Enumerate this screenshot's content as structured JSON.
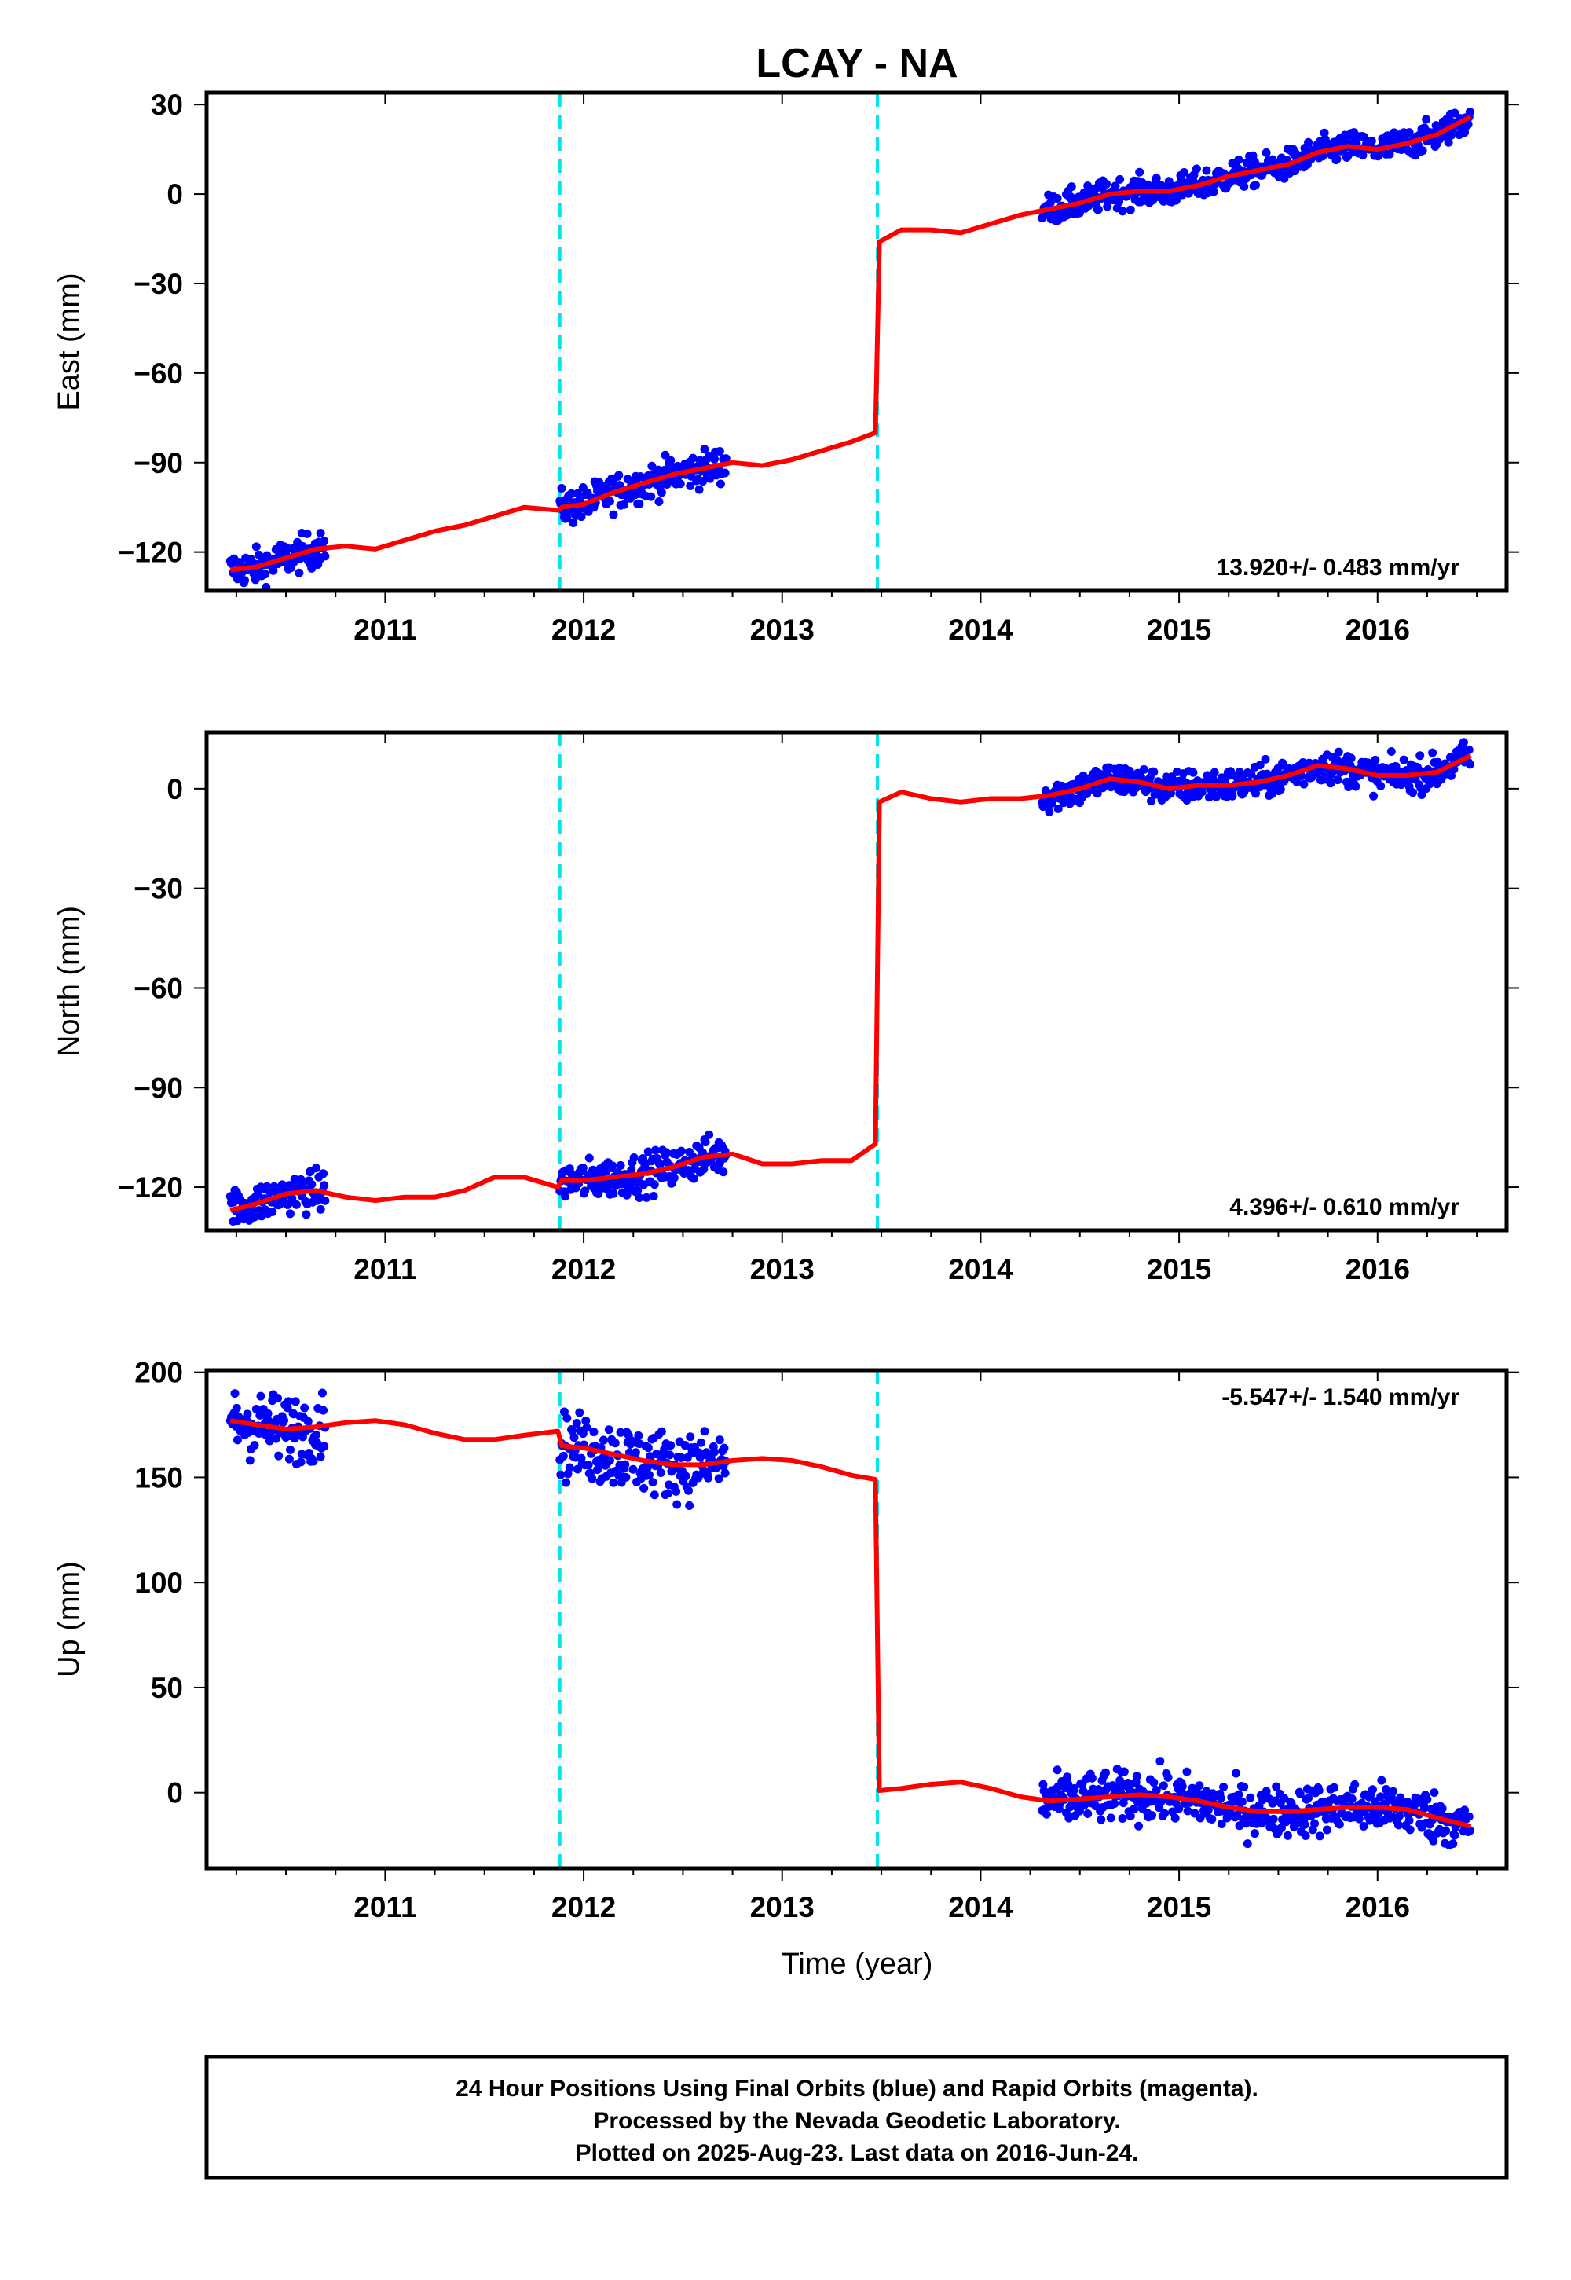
{
  "title": "LCAY - NA",
  "colors": {
    "data": "#0000ff",
    "fit": "#ff0000",
    "breaks": "#00e5ee",
    "frame": "#000000"
  },
  "chart_data": [
    {
      "type": "scatter",
      "ylabel": "East (mm)",
      "xlim": [
        2010.1,
        2016.65
      ],
      "ylim": [
        -133,
        34
      ],
      "yticks": [
        30,
        0,
        -30,
        -60,
        -90,
        -120
      ],
      "yticklabels": [
        "30",
        "0",
        "−30",
        "−60",
        "−90",
        "−120"
      ],
      "xticks": [
        2011,
        2012,
        2013,
        2014,
        2015,
        2016
      ],
      "xticklabels": [
        "2011",
        "2012",
        "2013",
        "2014",
        "2015",
        "2016"
      ],
      "rate": "13.920+/- 0.483 mm/yr",
      "rate_position": "bottom-right",
      "breaks": [
        2011.88,
        2013.48
      ],
      "fit": {
        "name": "model fit",
        "x": [
          2010.22,
          2010.35,
          2010.5,
          2010.65,
          2010.8,
          2010.95,
          2011.1,
          2011.25,
          2011.4,
          2011.55,
          2011.7,
          2011.87,
          2011.89,
          2012.0,
          2012.15,
          2012.3,
          2012.45,
          2012.6,
          2012.75,
          2012.9,
          2013.05,
          2013.2,
          2013.35,
          2013.47,
          2013.49,
          2013.6,
          2013.75,
          2013.9,
          2014.05,
          2014.2,
          2014.35,
          2014.5,
          2014.65,
          2014.8,
          2014.95,
          2015.1,
          2015.25,
          2015.4,
          2015.55,
          2015.7,
          2015.85,
          2016.0,
          2016.15,
          2016.3,
          2016.47
        ],
        "y": [
          -126,
          -125,
          -122,
          -119,
          -118,
          -119,
          -116,
          -113,
          -111,
          -108,
          -105,
          -106,
          -105,
          -104,
          -100,
          -97,
          -94,
          -92,
          -90,
          -91,
          -89,
          -86,
          -83,
          -80,
          -16,
          -12,
          -12,
          -13,
          -10,
          -7,
          -5,
          -3,
          0,
          1,
          1,
          3,
          6,
          8,
          10,
          14,
          16,
          15,
          17,
          20,
          26
        ]
      },
      "scatter": {
        "name": "24 hour positions",
        "segments": [
          {
            "x0": 2010.22,
            "x1": 2010.7,
            "noise": 3
          },
          {
            "x0": 2011.88,
            "x1": 2012.72,
            "noise": 3
          },
          {
            "x0": 2014.31,
            "x1": 2016.47,
            "noise": 2.5
          }
        ]
      }
    },
    {
      "type": "scatter",
      "ylabel": "North (mm)",
      "xlim": [
        2010.1,
        2016.65
      ],
      "ylim": [
        -133,
        17
      ],
      "yticks": [
        0,
        -30,
        -60,
        -90,
        -120
      ],
      "yticklabels": [
        "0",
        "−30",
        "−60",
        "−90",
        "−120"
      ],
      "xticks": [
        2011,
        2012,
        2013,
        2014,
        2015,
        2016
      ],
      "xticklabels": [
        "2011",
        "2012",
        "2013",
        "2014",
        "2015",
        "2016"
      ],
      "rate": "4.396+/- 0.610 mm/yr",
      "rate_position": "bottom-right",
      "breaks": [
        2011.88,
        2013.48
      ],
      "fit": {
        "name": "model fit",
        "x": [
          2010.22,
          2010.35,
          2010.5,
          2010.65,
          2010.8,
          2010.95,
          2011.1,
          2011.25,
          2011.4,
          2011.55,
          2011.7,
          2011.87,
          2011.89,
          2012.0,
          2012.15,
          2012.3,
          2012.45,
          2012.6,
          2012.75,
          2012.9,
          2013.05,
          2013.2,
          2013.35,
          2013.47,
          2013.49,
          2013.6,
          2013.75,
          2013.9,
          2014.05,
          2014.2,
          2014.35,
          2014.5,
          2014.65,
          2014.8,
          2014.95,
          2015.1,
          2015.25,
          2015.4,
          2015.55,
          2015.7,
          2015.85,
          2016.0,
          2016.15,
          2016.3,
          2016.47
        ],
        "y": [
          -127,
          -125,
          -122,
          -121,
          -123,
          -124,
          -123,
          -123,
          -121,
          -117,
          -117,
          -120,
          -118,
          -118,
          -117,
          -116,
          -114,
          -111,
          -110,
          -113,
          -113,
          -112,
          -112,
          -107,
          -4,
          -1,
          -3,
          -4,
          -3,
          -3,
          -2,
          0,
          3,
          2,
          0,
          1,
          1,
          2,
          4,
          7,
          6,
          4,
          4,
          5,
          10
        ]
      },
      "scatter": {
        "name": "24 hour positions",
        "segments": [
          {
            "x0": 2010.22,
            "x1": 2010.7,
            "noise": 3
          },
          {
            "x0": 2011.88,
            "x1": 2012.72,
            "noise": 3
          },
          {
            "x0": 2014.31,
            "x1": 2016.47,
            "noise": 2.5
          }
        ]
      }
    },
    {
      "type": "scatter",
      "ylabel": "Up (mm)",
      "xlaxbel": "",
      "xlabel": "Time (year)",
      "xlim": [
        2010.1,
        2016.65
      ],
      "ylim": [
        -36,
        201
      ],
      "yticks": [
        200,
        150,
        100,
        50,
        0
      ],
      "yticklabels": [
        "200",
        "150",
        "100",
        "50",
        "0"
      ],
      "xticks": [
        2011,
        2012,
        2013,
        2014,
        2015,
        2016
      ],
      "xticklabels": [
        "2011",
        "2012",
        "2013",
        "2014",
        "2015",
        "2016"
      ],
      "rate": "-5.547+/- 1.540 mm/yr",
      "rate_position": "top-right",
      "breaks": [
        2011.88,
        2013.48
      ],
      "fit": {
        "name": "model fit",
        "x": [
          2010.22,
          2010.35,
          2010.5,
          2010.65,
          2010.8,
          2010.95,
          2011.1,
          2011.25,
          2011.4,
          2011.55,
          2011.7,
          2011.87,
          2011.89,
          2012.0,
          2012.15,
          2012.3,
          2012.45,
          2012.6,
          2012.75,
          2012.9,
          2013.05,
          2013.2,
          2013.35,
          2013.47,
          2013.49,
          2013.6,
          2013.75,
          2013.9,
          2014.05,
          2014.2,
          2014.35,
          2014.5,
          2014.65,
          2014.8,
          2014.95,
          2015.1,
          2015.25,
          2015.4,
          2015.55,
          2015.7,
          2015.85,
          2016.0,
          2016.15,
          2016.3,
          2016.47
        ],
        "y": [
          177,
          175,
          173,
          174,
          176,
          177,
          175,
          171,
          168,
          168,
          170,
          172,
          165,
          164,
          161,
          158,
          156,
          156,
          158,
          159,
          158,
          155,
          151,
          149,
          1,
          2,
          4,
          5,
          2,
          -2,
          -4,
          -3,
          -2,
          -1,
          -2,
          -4,
          -7,
          -9,
          -9,
          -8,
          -7,
          -7,
          -8,
          -12,
          -16
        ]
      },
      "scatter": {
        "name": "24 hour positions",
        "segments": [
          {
            "x0": 2010.22,
            "x1": 2010.7,
            "noise": 8
          },
          {
            "x0": 2011.88,
            "x1": 2012.72,
            "noise": 8
          },
          {
            "x0": 2014.31,
            "x1": 2016.47,
            "noise": 6
          }
        ]
      }
    }
  ],
  "footer": {
    "line1": "24 Hour Positions Using Final Orbits (blue) and Rapid Orbits (magenta).",
    "line2": "Processed by the Nevada Geodetic Laboratory.",
    "line3": "Plotted on 2025-Aug-23. Last data on 2016-Jun-24."
  }
}
